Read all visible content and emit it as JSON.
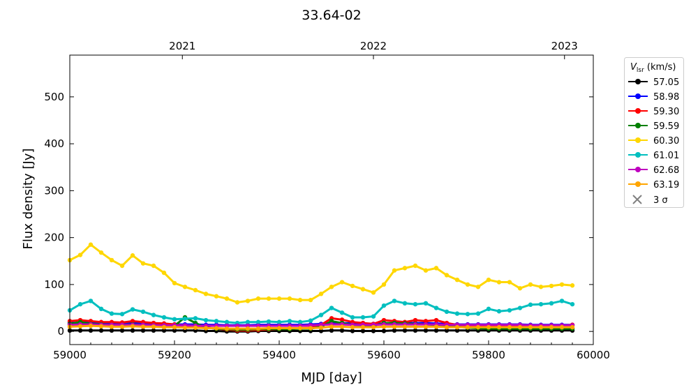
{
  "chart_data": {
    "type": "line",
    "title": "33.64-02",
    "xlabel": "MJD [day]",
    "ylabel": "Flux density [Jy]",
    "xlim": [
      59000,
      60000
    ],
    "ylim": [
      -28,
      589
    ],
    "xticks": [
      59000,
      59200,
      59400,
      59600,
      59800,
      60000
    ],
    "yticks": [
      0,
      100,
      200,
      300,
      400,
      500
    ],
    "top_axis": {
      "ticks": [
        {
          "label": "2021",
          "mjd": 59215
        },
        {
          "label": "2022",
          "mjd": 59580
        },
        {
          "label": "2023",
          "mjd": 59945
        }
      ]
    },
    "legend": {
      "title": "V",
      "title_sub": "lsr",
      "title_unit": " (km/s)",
      "placement": "outside-right",
      "sigma_label": "3 σ"
    },
    "x": [
      59000,
      59020,
      59040,
      59060,
      59080,
      59100,
      59120,
      59140,
      59160,
      59180,
      59200,
      59220,
      59240,
      59260,
      59280,
      59300,
      59320,
      59340,
      59360,
      59380,
      59400,
      59420,
      59440,
      59460,
      59480,
      59500,
      59520,
      59540,
      59560,
      59580,
      59600,
      59620,
      59640,
      59660,
      59680,
      59700,
      59720,
      59740,
      59760,
      59780,
      59800,
      59820,
      59840,
      59860,
      59880,
      59900,
      59920,
      59940,
      59960
    ],
    "series": [
      {
        "name": "57.05",
        "color": "#000000",
        "values": [
          2,
          2,
          2,
          2,
          2,
          2,
          2,
          2,
          2,
          2,
          2,
          2,
          2,
          1,
          1,
          0,
          0,
          0,
          1,
          1,
          1,
          1,
          1,
          1,
          1,
          2,
          2,
          1,
          1,
          1,
          1,
          2,
          2,
          2,
          2,
          2,
          2,
          2,
          2,
          2,
          2,
          2,
          2,
          2,
          2,
          2,
          2,
          2,
          2
        ]
      },
      {
        "name": "58.98",
        "color": "#0000ff",
        "values": [
          18,
          19,
          20,
          18,
          17,
          17,
          18,
          17,
          16,
          16,
          15,
          15,
          15,
          14,
          14,
          13,
          13,
          13,
          14,
          14,
          14,
          14,
          14,
          15,
          16,
          18,
          18,
          17,
          16,
          16,
          17,
          18,
          18,
          18,
          18,
          17,
          16,
          15,
          15,
          15,
          15,
          15,
          15,
          15,
          14,
          14,
          14,
          14,
          14
        ]
      },
      {
        "name": "59.30",
        "color": "#ff0000",
        "values": [
          22,
          24,
          22,
          20,
          20,
          19,
          22,
          20,
          18,
          17,
          15,
          12,
          10,
          8,
          6,
          4,
          2,
          2,
          3,
          4,
          5,
          6,
          7,
          8,
          14,
          28,
          25,
          20,
          18,
          16,
          24,
          22,
          20,
          24,
          22,
          24,
          18,
          14,
          12,
          12,
          12,
          12,
          12,
          12,
          12,
          12,
          12,
          12,
          14
        ]
      },
      {
        "name": "59.59",
        "color": "#008000",
        "values": [
          16,
          20,
          16,
          15,
          14,
          14,
          15,
          14,
          13,
          13,
          12,
          30,
          18,
          8,
          6,
          5,
          4,
          4,
          5,
          5,
          5,
          5,
          6,
          6,
          10,
          22,
          18,
          14,
          13,
          12,
          18,
          18,
          17,
          16,
          15,
          14,
          12,
          10,
          8,
          7,
          6,
          6,
          6,
          6,
          6,
          6,
          6,
          6,
          6
        ]
      },
      {
        "name": "60.30",
        "color": "#ffd700",
        "values": [
          152,
          163,
          185,
          168,
          152,
          140,
          162,
          145,
          140,
          125,
          103,
          95,
          88,
          80,
          75,
          70,
          62,
          65,
          70,
          70,
          70,
          70,
          67,
          67,
          80,
          95,
          105,
          97,
          90,
          83,
          100,
          130,
          135,
          140,
          130,
          135,
          120,
          110,
          100,
          95,
          110,
          105,
          105,
          92,
          100,
          95,
          97,
          100,
          98
        ]
      },
      {
        "name": "61.01",
        "color": "#00bfbf",
        "values": [
          45,
          58,
          65,
          48,
          38,
          37,
          47,
          42,
          35,
          30,
          26,
          27,
          28,
          24,
          22,
          20,
          18,
          20,
          20,
          21,
          20,
          22,
          20,
          23,
          35,
          50,
          40,
          30,
          30,
          32,
          55,
          65,
          60,
          58,
          60,
          50,
          42,
          38,
          37,
          38,
          48,
          43,
          45,
          50,
          57,
          58,
          60,
          65,
          58
        ]
      },
      {
        "name": "62.68",
        "color": "#bf00bf",
        "values": [
          14,
          15,
          15,
          14,
          14,
          14,
          14,
          14,
          13,
          13,
          13,
          13,
          12,
          12,
          12,
          12,
          12,
          12,
          12,
          12,
          12,
          12,
          12,
          13,
          14,
          15,
          15,
          14,
          14,
          14,
          15,
          15,
          15,
          15,
          15,
          15,
          14,
          14,
          14,
          14,
          14,
          14,
          14,
          14,
          13,
          13,
          13,
          13,
          13
        ]
      },
      {
        "name": "63.19",
        "color": "#ffa500",
        "values": [
          10,
          11,
          12,
          11,
          10,
          10,
          11,
          10,
          10,
          9,
          9,
          8,
          8,
          7,
          7,
          6,
          6,
          6,
          6,
          7,
          7,
          7,
          7,
          7,
          8,
          10,
          10,
          9,
          9,
          9,
          10,
          10,
          10,
          10,
          10,
          10,
          9,
          9,
          9,
          9,
          9,
          9,
          9,
          9,
          9,
          9,
          9,
          9,
          9
        ]
      }
    ]
  }
}
